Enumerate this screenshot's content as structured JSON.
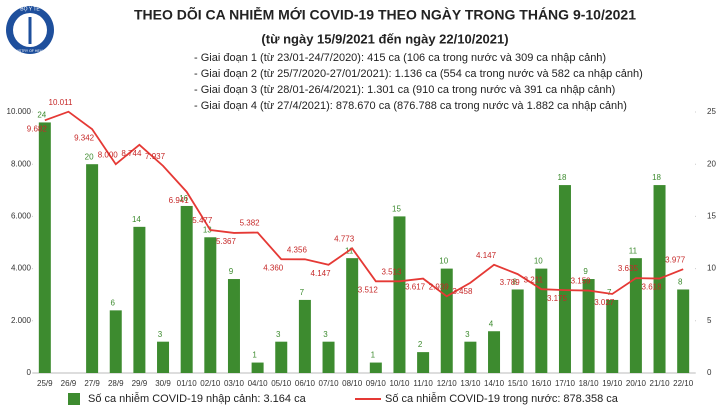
{
  "logo": [
    "BỘ Y TẾ",
    "MINISTRY OF HEALTH"
  ],
  "chart_data": {
    "type": "combo",
    "title": "THEO DÕI CA NHIỄM MỚI COVID-19 THEO NGÀY TRONG THÁNG 9-10/2021",
    "subtitle": "(từ ngày 15/9/2021 đến ngày 22/10/2021)",
    "notes": [
      "- Giai đoạn 1 (từ 23/01-24/7/2020): 415 ca (106 ca trong nước và 309 ca nhập cảnh)",
      "- Giai đoạn 2 (từ 25/7/2020-27/01/2021): 1.136 ca (554 ca trong nước và 582 ca nhập cảnh)",
      "- Giai đoạn 3 (từ 28/01-26/4/2021): 1.301 ca (910 ca trong nước và 391 ca nhập cảnh)",
      "- Giai đoạn 4 (từ 27/4/2021): 878.670 ca (876.788 ca trong nước và 1.882 ca nhập cảnh)"
    ],
    "categories": [
      "25/9",
      "26/9",
      "27/9",
      "28/9",
      "29/9",
      "30/9",
      "01/10",
      "02/10",
      "03/10",
      "04/10",
      "05/10",
      "06/10",
      "07/10",
      "08/10",
      "09/10",
      "10/10",
      "11/10",
      "12/10",
      "13/10",
      "14/10",
      "15/10",
      "16/10",
      "17/10",
      "18/10",
      "19/10",
      "20/10",
      "21/10",
      "22/10"
    ],
    "series": [
      {
        "name": "Số ca nhiễm COVID-19 nhập cảnh: 3.164 ca",
        "type": "bar",
        "axis": "y2",
        "color": "#3d8b2f",
        "values": [
          24,
          null,
          20,
          6,
          14,
          3,
          16,
          13,
          9,
          1,
          3,
          7,
          3,
          11,
          1,
          15,
          2,
          10,
          3,
          4,
          8,
          10,
          18,
          9,
          7,
          11,
          18,
          8
        ]
      },
      {
        "name": "Số ca nhiễm COVID-19 trong nước: 878.358 ca",
        "type": "line",
        "axis": "y",
        "color": "#e53935",
        "values": [
          9682,
          10011,
          9342,
          8000,
          8744,
          7937,
          6941,
          5477,
          5367,
          5382,
          4360,
          4356,
          4147,
          4773,
          3512,
          3513,
          3617,
          2939,
          3458,
          4147,
          3789,
          3211,
          3175,
          3159,
          3027,
          3635,
          3618,
          3977
        ],
        "value_labels": [
          "9.682",
          "10.011",
          "9.342",
          "8.000",
          "8.744",
          "7.937",
          "6.941",
          "5.477",
          "5.367",
          "5.382",
          "4.360",
          "4.356",
          "4.147",
          "4.773",
          "3.512",
          "3.513",
          "3.617",
          "2.939",
          "3.458",
          "4.147",
          "3.789",
          "3.211",
          "3.175",
          "3.159",
          "3.027",
          "3.635",
          "3.618",
          "3.977"
        ]
      }
    ],
    "ylim": [
      0,
      10000
    ],
    "yticks": [
      0,
      {
        "value": 2000,
        "label": "2.000"
      },
      {
        "value": 4000,
        "label": "4.000"
      },
      {
        "value": 6000,
        "label": "6.000"
      },
      {
        "value": 8000,
        "label": "8.000"
      },
      {
        "value": 10000,
        "label": "10.000"
      }
    ],
    "y2lim": [
      0,
      25
    ],
    "y2ticks": [
      0,
      5,
      10,
      15,
      20,
      25
    ]
  }
}
